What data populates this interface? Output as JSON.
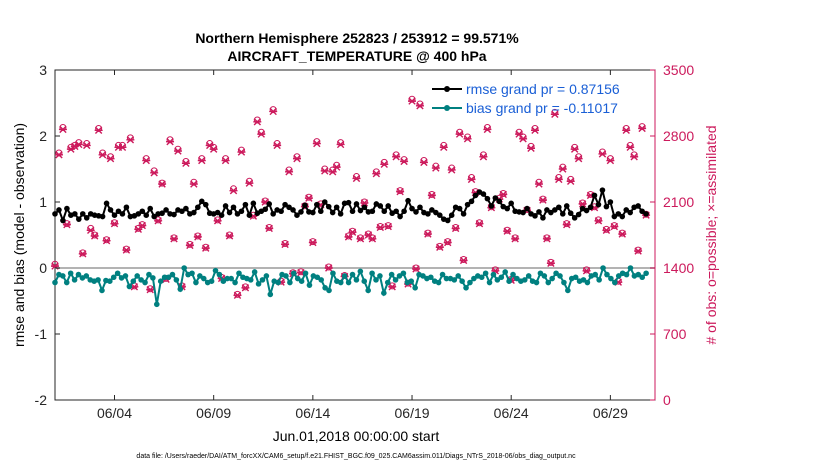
{
  "chart_data": {
    "type": "line",
    "title": "Northern Hemisphere 252823 / 253912 = 99.571%",
    "subtitle": "AIRCRAFT_TEMPERATURE @ 400 hPa",
    "xlabel": "Jun.01,2018 00:00:00 start",
    "ylabel_left": "rmse and bias (model - observation)",
    "ylabel_right": "# of obs: o=possible; ×=assimilated",
    "footnote": "data file: /Users/raeder/DAI/ATM_forcXX/CAM6_setup/f.e21.FHIST_BGC.f09_025.CAM6assim.011/Diags_NTrS_2018-06/obs_diag_output.nc",
    "x_ticks": [
      {
        "day": 4,
        "label": "06/04"
      },
      {
        "day": 9,
        "label": "06/09"
      },
      {
        "day": 14,
        "label": "06/14"
      },
      {
        "day": 19,
        "label": "06/19"
      },
      {
        "day": 24,
        "label": "06/24"
      },
      {
        "day": 29,
        "label": "06/29"
      }
    ],
    "xlim": [
      1.0,
      31.25
    ],
    "ylim_left": [
      -2,
      3
    ],
    "ylim_right": [
      0,
      3500
    ],
    "left_ticks": [
      "3",
      "2",
      "1",
      "0",
      "-1",
      "-2"
    ],
    "right_ticks": [
      "3500",
      "2800",
      "2100",
      "1400",
      "700",
      "0"
    ],
    "zero_line": 0,
    "colors": {
      "rmse": "#000000",
      "bias": "#008080",
      "nobs": "#cc1a5c",
      "legend_text": "#1a5fd6",
      "right_axis": "#cc1a5c"
    },
    "series": [
      {
        "name": "rmse grand pr = 0.87156",
        "marker": "filled-circle",
        "values": [
          0.82,
          0.88,
          0.72,
          0.9,
          0.8,
          0.82,
          0.74,
          0.82,
          0.76,
          0.82,
          0.8,
          0.79,
          0.78,
          0.98,
          0.88,
          0.8,
          0.86,
          0.82,
          0.92,
          0.78,
          0.79,
          0.82,
          0.86,
          0.8,
          0.9,
          0.78,
          0.82,
          0.83,
          0.88,
          0.82,
          0.81,
          0.88,
          0.86,
          0.9,
          0.82,
          0.84,
          0.92,
          1.01,
          0.96,
          0.83,
          0.82,
          0.84,
          0.8,
          0.94,
          0.84,
          0.92,
          0.82,
          0.86,
          0.96,
          0.8,
          0.98,
          0.83,
          0.86,
          0.89,
          0.97,
          0.82,
          0.88,
          0.86,
          0.96,
          0.92,
          0.88,
          0.8,
          0.85,
          0.95,
          0.85,
          0.84,
          0.96,
          0.86,
          1.0,
          0.93,
          0.84,
          0.92,
          0.82,
          0.98,
          0.99,
          0.86,
          0.97,
          0.87,
          0.92,
          0.85,
          0.86,
          0.97,
          0.94,
          0.86,
          0.94,
          0.83,
          0.86,
          0.78,
          0.86,
          1.02,
          0.9,
          0.85,
          0.92,
          0.84,
          0.82,
          0.88,
          0.84,
          0.8,
          0.74,
          0.72,
          0.8,
          0.92,
          0.9,
          0.82,
          0.96,
          1.01,
          1.1,
          1.15,
          1.12,
          1.05,
          0.94,
          1.06,
          1.01,
          0.93,
          0.9,
          0.98,
          0.86,
          0.85,
          0.84,
          0.9,
          0.82,
          0.79,
          0.85,
          0.76,
          0.88,
          0.84,
          0.88,
          0.92,
          0.82,
          0.94,
          0.83,
          0.76,
          0.81,
          0.9,
          0.87,
          0.92,
          1.1,
          0.96,
          1.18,
          0.93,
          1.0,
          0.78,
          0.82,
          0.78,
          0.88,
          0.84,
          0.92,
          0.94,
          0.86,
          0.82
        ]
      },
      {
        "name": "bias grand pr = -0.11017",
        "marker": "filled-circle",
        "values": [
          -0.22,
          -0.1,
          -0.12,
          -0.22,
          -0.08,
          -0.18,
          -0.1,
          -0.15,
          -0.12,
          -0.18,
          -0.2,
          -0.18,
          -0.34,
          -0.19,
          -0.2,
          -0.14,
          -0.08,
          -0.15,
          -0.12,
          -0.28,
          -0.2,
          -0.12,
          -0.18,
          -0.22,
          -0.1,
          -0.15,
          -0.55,
          -0.2,
          -0.14,
          -0.14,
          -0.1,
          -0.18,
          -0.32,
          0.0,
          -0.1,
          -0.08,
          -0.22,
          -0.12,
          -0.16,
          -0.22,
          -0.2,
          -0.04,
          -0.1,
          -0.2,
          -0.16,
          -0.16,
          -0.22,
          -0.08,
          -0.14,
          -0.16,
          -0.18,
          -0.06,
          -0.24,
          -0.18,
          -0.12,
          -0.4,
          -0.2,
          -0.22,
          -0.1,
          -0.12,
          -0.22,
          -0.08,
          -0.16,
          -0.2,
          -0.08,
          -0.26,
          -0.12,
          -0.14,
          -0.18,
          -0.3,
          -0.34,
          -0.08,
          -0.2,
          -0.22,
          -0.12,
          -0.22,
          -0.1,
          -0.18,
          -0.05,
          -0.2,
          -0.34,
          -0.08,
          -0.18,
          -0.12,
          -0.38,
          -0.22,
          -0.1,
          -0.18,
          -0.12,
          -0.08,
          -0.22,
          -0.2,
          -0.3,
          -0.1,
          -0.12,
          -0.16,
          -0.14,
          -0.2,
          -0.22,
          -0.1,
          -0.16,
          -0.16,
          -0.18,
          -0.12,
          -0.2,
          -0.3,
          -0.22,
          -0.16,
          -0.12,
          -0.14,
          -0.08,
          -0.22,
          -0.1,
          -0.18,
          -0.14,
          -0.06,
          -0.2,
          -0.1,
          -0.16,
          -0.2,
          -0.18,
          -0.12,
          -0.2,
          -0.22,
          -0.08,
          -0.12,
          -0.22,
          -0.16,
          -0.08,
          -0.12,
          -0.22,
          -0.34,
          -0.16,
          -0.14,
          -0.2,
          -0.18,
          -0.22,
          -0.12,
          -0.1,
          -0.18,
          0.0,
          -0.1,
          -0.16,
          -0.22,
          -0.12,
          -0.08,
          -0.1,
          0.0,
          -0.12,
          -0.1,
          -0.14,
          -0.08
        ]
      },
      {
        "name": "# of obs possible",
        "axis": "right",
        "marker": "circle",
        "values": [
          1440,
          2620,
          2890,
          1870,
          2680,
          2700,
          2730,
          1560,
          2720,
          1820,
          1750,
          2880,
          2620,
          1700,
          2580,
          1880,
          2700,
          2700,
          1600,
          2780,
          1210,
          1820,
          1860,
          2560,
          1180,
          2430,
          1910,
          2300,
          1290,
          2760,
          1720,
          2660,
          1210,
          2530,
          1650,
          2310,
          1740,
          2560,
          1620,
          2720,
          2680,
          1910,
          1300,
          2560,
          1750,
          2240,
          1120,
          2650,
          1200,
          2320,
          1960,
          2970,
          2840,
          2110,
          1830,
          3080,
          2720,
          1260,
          1660,
          2440,
          1350,
          2580,
          1360,
          2060,
          2150,
          1680,
          2740,
          2080,
          2450,
          1410,
          2440,
          2490,
          2730,
          1320,
          1740,
          1790,
          2370,
          1720,
          2100,
          1760,
          1720,
          2420,
          1840,
          2520,
          1850,
          1210,
          2600,
          2220,
          2550,
          1240,
          3190,
          1400,
          3140,
          2540,
          1770,
          2180,
          2480,
          1630,
          2700,
          1680,
          2460,
          1830,
          2840,
          1490,
          2790,
          2360,
          2210,
          1880,
          2600,
          2890,
          2050,
          1380,
          2140,
          2190,
          1800,
          1280,
          1720,
          2840,
          2790,
          2020,
          2690,
          2880,
          2310,
          2130,
          1720,
          1460,
          3050,
          2360,
          2470,
          1870,
          2340,
          2680,
          2580,
          2090,
          1380,
          2180,
          2050,
          1910,
          2630,
          1810,
          2560,
          1850,
          1260,
          1770,
          2880,
          2700,
          2600,
          1590,
          2900,
          1970
        ]
      },
      {
        "name": "# of obs assimilated",
        "axis": "right",
        "marker": "cross",
        "values": [
          1420,
          2600,
          2870,
          1860,
          2660,
          2690,
          2710,
          1550,
          2700,
          1800,
          1740,
          2860,
          2600,
          1690,
          2560,
          1870,
          2680,
          2680,
          1590,
          2760,
          1200,
          1810,
          1850,
          2540,
          1170,
          2410,
          1900,
          2290,
          1280,
          2740,
          1710,
          2640,
          1200,
          2510,
          1640,
          2290,
          1730,
          2540,
          1610,
          2700,
          2660,
          1900,
          1290,
          2540,
          1740,
          2220,
          1110,
          2630,
          1190,
          2300,
          1950,
          2950,
          2820,
          2100,
          1820,
          3060,
          2700,
          1250,
          1650,
          2420,
          1340,
          2560,
          1350,
          2050,
          2140,
          1670,
          2720,
          2070,
          2430,
          1400,
          2420,
          2470,
          2710,
          1310,
          1730,
          1780,
          2350,
          1710,
          2090,
          1750,
          1710,
          2400,
          1830,
          2500,
          1840,
          1200,
          2580,
          2210,
          2530,
          1230,
          3170,
          1390,
          3120,
          2520,
          1760,
          2170,
          2460,
          1620,
          2680,
          1670,
          2440,
          1820,
          2820,
          1480,
          2770,
          2340,
          2200,
          1870,
          2580,
          2870,
          2040,
          1370,
          2130,
          2180,
          1790,
          1270,
          1710,
          2820,
          2770,
          2010,
          2670,
          2860,
          2290,
          2120,
          1710,
          1450,
          3030,
          2340,
          2450,
          1860,
          2320,
          2660,
          2560,
          2080,
          1370,
          2170,
          2040,
          1900,
          2610,
          1800,
          2540,
          1840,
          1250,
          1760,
          2860,
          2680,
          2580,
          1580,
          2880,
          1960
        ]
      }
    ]
  }
}
